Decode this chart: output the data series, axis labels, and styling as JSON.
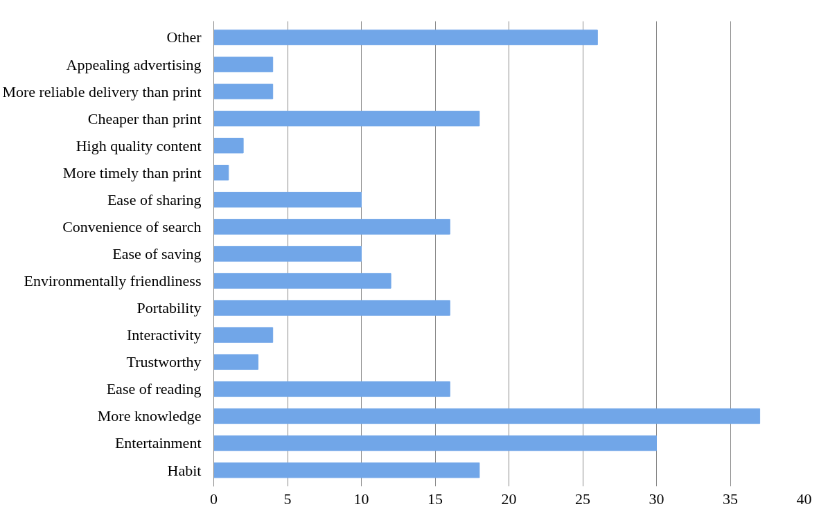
{
  "chart_data": {
    "type": "bar",
    "orientation": "horizontal",
    "categories": [
      "Other",
      "Appealing advertising",
      "More reliable delivery than print",
      "Cheaper than print",
      "High quality content",
      "More timely than print",
      "Ease of sharing",
      "Convenience of search",
      "Ease of saving",
      "Environmentally friendliness",
      "Portability",
      "Interactivity",
      "Trustworthy",
      "Ease of reading",
      "More knowledge",
      "Entertainment",
      "Habit"
    ],
    "values": [
      26,
      4,
      4,
      18,
      2,
      1,
      10,
      16,
      10,
      12,
      16,
      4,
      3,
      16,
      37,
      30,
      18
    ],
    "color": "#71a6e8",
    "xlim": [
      0,
      40
    ],
    "xticks": [
      0,
      5,
      10,
      15,
      20,
      25,
      30,
      35,
      40
    ],
    "grid": "x"
  }
}
